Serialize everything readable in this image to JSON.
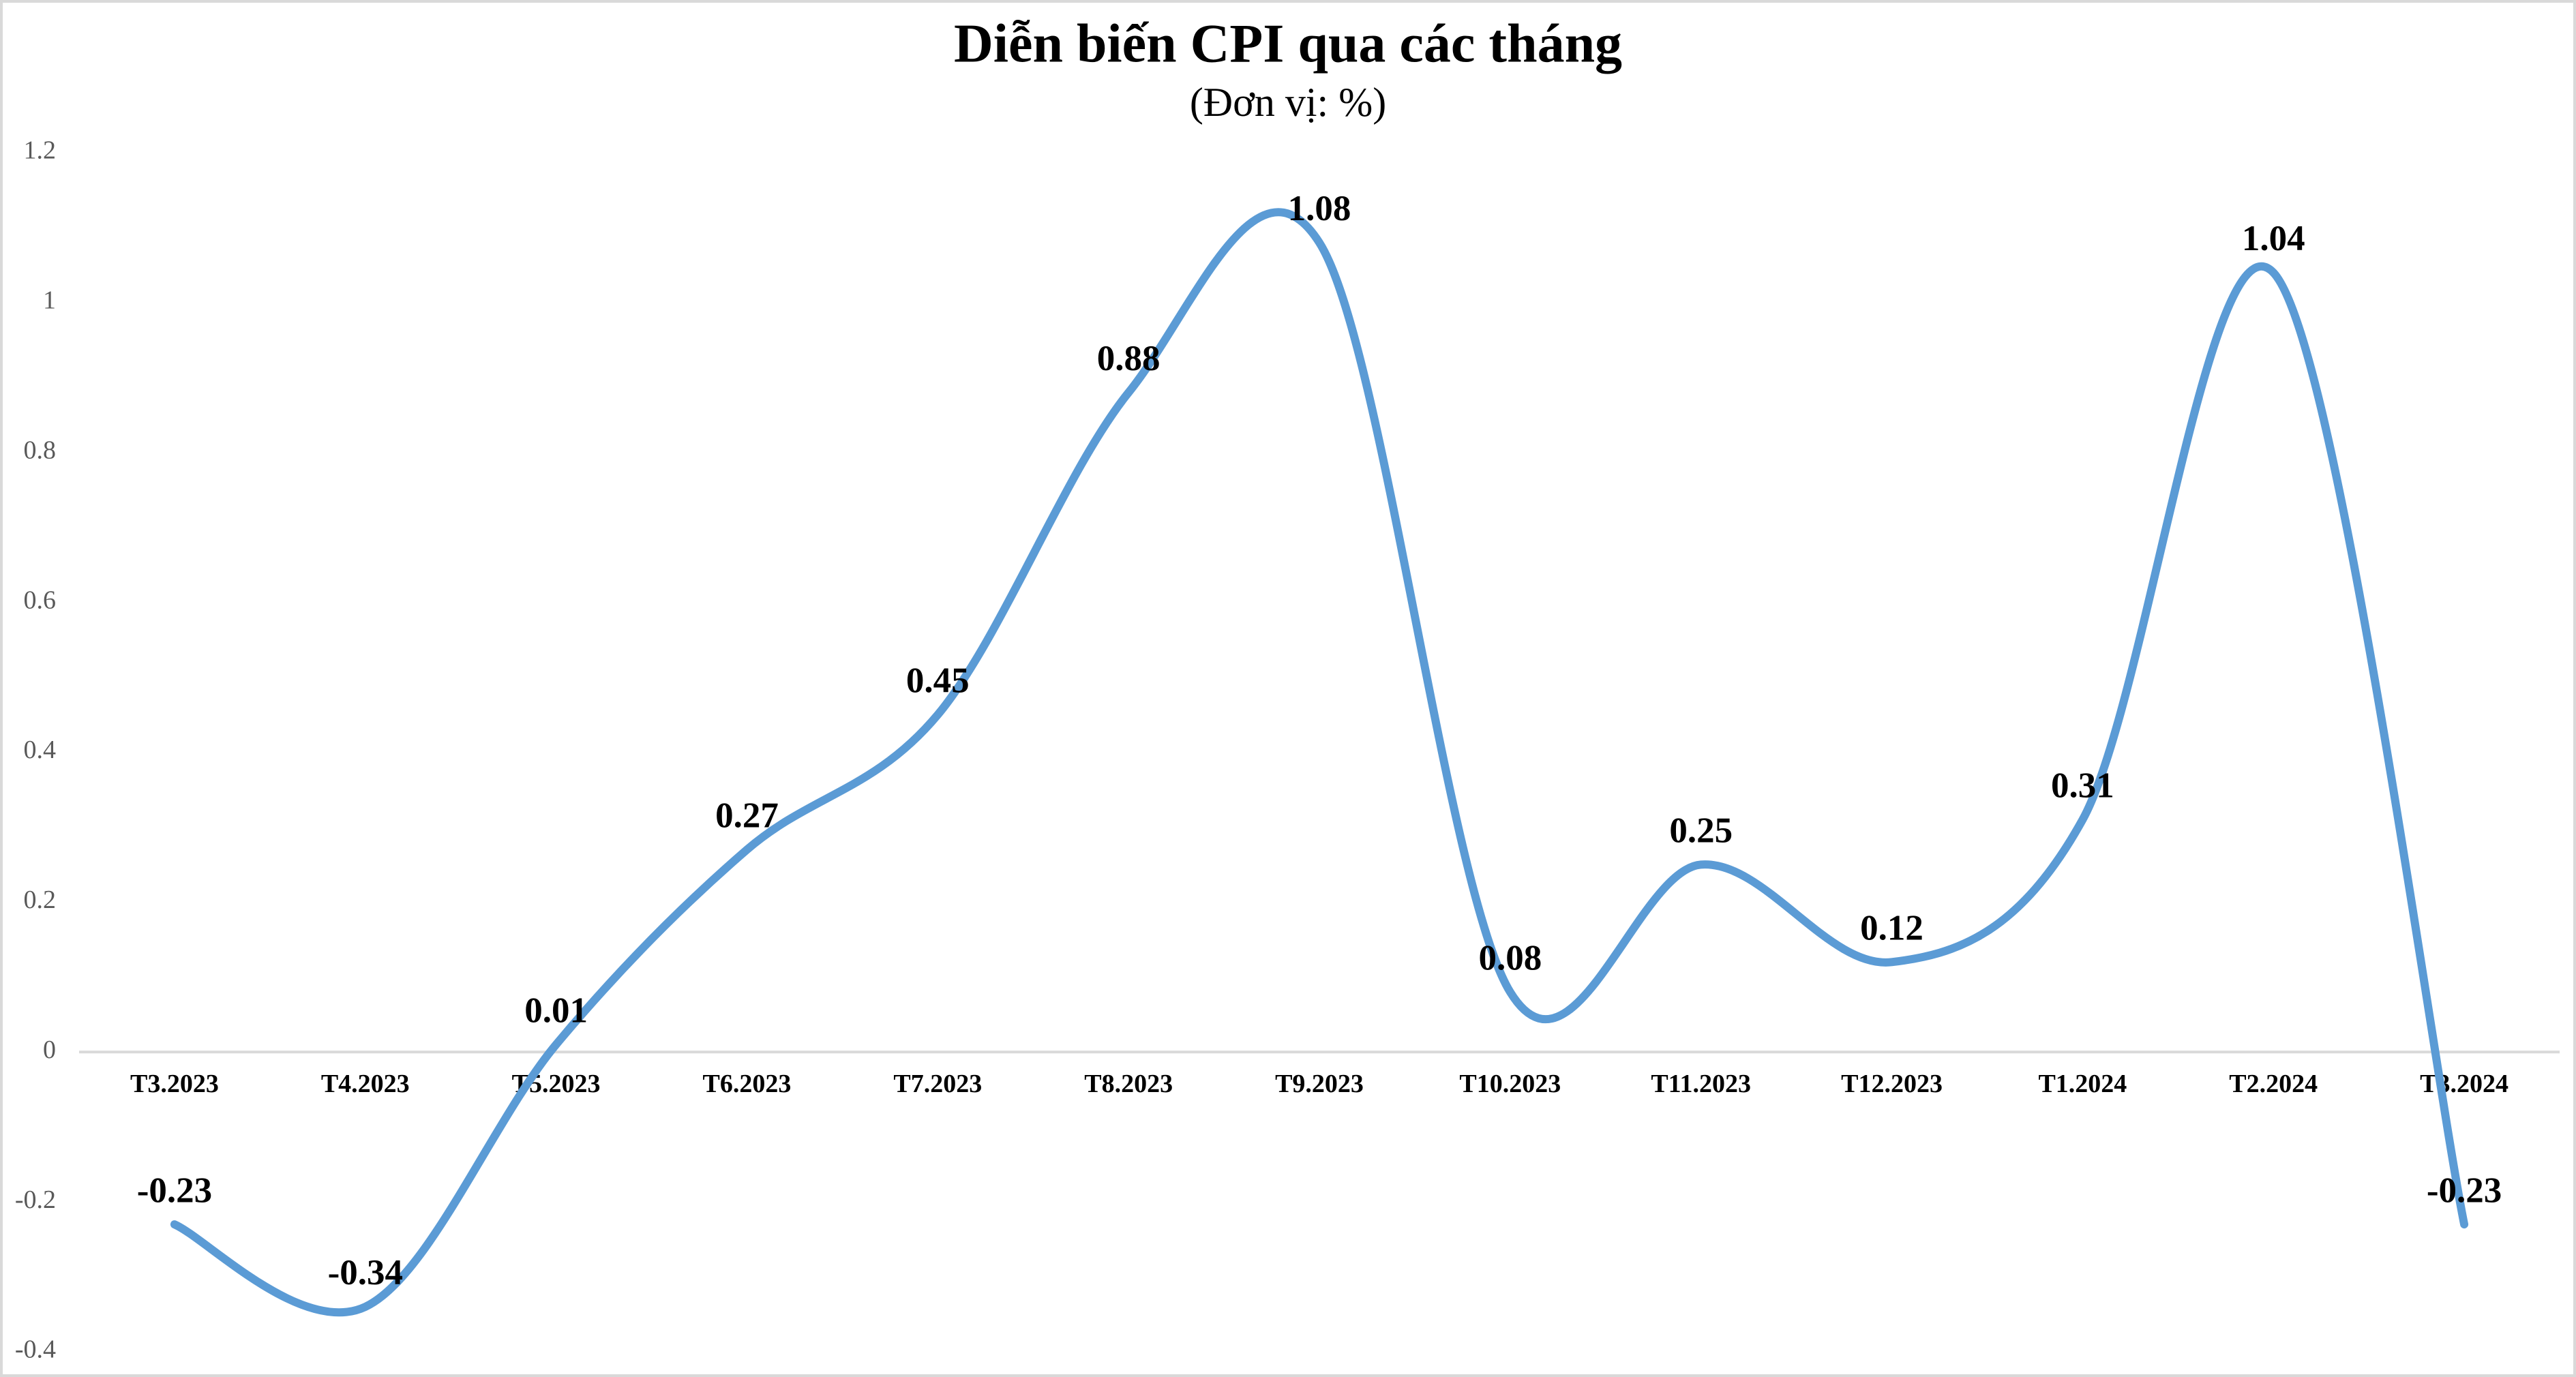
{
  "chart_data": {
    "type": "line",
    "title": "Diễn biến CPI qua các tháng",
    "subtitle": "(Đơn vị: %)",
    "categories": [
      "T3.2023",
      "T4.2023",
      "T5.2023",
      "T6.2023",
      "T7.2023",
      "T8.2023",
      "T9.2023",
      "T10.2023",
      "T11.2023",
      "T12.2023",
      "T1.2024",
      "T2.2024",
      "T3.2024"
    ],
    "series": [
      {
        "name": "CPI",
        "color": "#5b9bd5",
        "values": [
          -0.23,
          -0.34,
          0.01,
          0.27,
          0.45,
          0.88,
          1.08,
          0.08,
          0.25,
          0.12,
          0.31,
          1.04,
          -0.23
        ]
      }
    ],
    "ylim": [
      -0.4,
      1.2
    ],
    "yticks": [
      -0.4,
      -0.2,
      0,
      0.2,
      0.4,
      0.6,
      0.8,
      1,
      1.2
    ],
    "grid": false,
    "smooth": true
  }
}
